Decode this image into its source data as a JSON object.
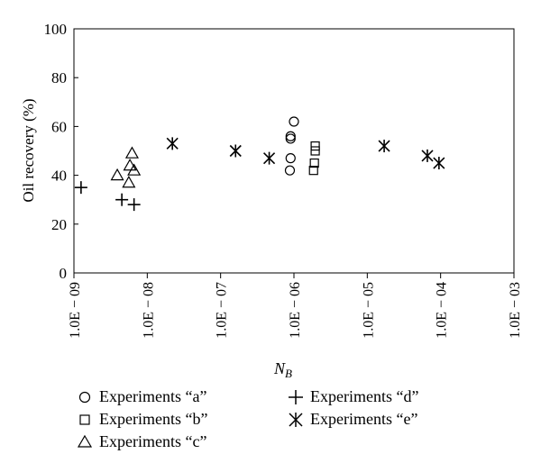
{
  "chart_data": {
    "type": "scatter",
    "xlabel": "N",
    "xlabel_sub": "B",
    "ylabel": "Oil recovery (%)",
    "x_scale": "log",
    "xlim": [
      1e-09,
      0.001
    ],
    "ylim": [
      0,
      100
    ],
    "x_ticks": [
      1e-09,
      1e-08,
      1e-07,
      1e-06,
      1e-05,
      0.0001,
      0.001
    ],
    "x_tick_labels": [
      "1.0E − 09",
      "1.0E − 08",
      "1.0E − 07",
      "1.0E − 06",
      "1.0E − 05",
      "1.0E − 04",
      "1.0E − 03"
    ],
    "y_ticks": [
      0,
      20,
      40,
      60,
      80,
      100
    ],
    "y_tick_labels": [
      "0",
      "20",
      "40",
      "60",
      "80",
      "100"
    ],
    "grid": false,
    "legend_position": "bottom",
    "series": [
      {
        "name": "Experiments “a”",
        "marker": "circle",
        "points": [
          [
            1e-06,
            62
          ],
          [
            9e-07,
            56
          ],
          [
            9e-07,
            55
          ],
          [
            9e-07,
            47
          ],
          [
            8.8e-07,
            42
          ]
        ]
      },
      {
        "name": "Experiments “b”",
        "marker": "square",
        "points": [
          [
            1.95e-06,
            52
          ],
          [
            1.95e-06,
            50
          ],
          [
            1.9e-06,
            45
          ],
          [
            1.85e-06,
            42
          ]
        ]
      },
      {
        "name": "Experiments “c”",
        "marker": "triangle",
        "points": [
          [
            6.2e-09,
            49
          ],
          [
            6.6e-09,
            42
          ],
          [
            5.8e-09,
            44
          ],
          [
            3.9e-09,
            40
          ],
          [
            5.6e-09,
            37
          ]
        ]
      },
      {
        "name": "Experiments “d”",
        "marker": "plus",
        "points": [
          [
            1.25e-09,
            35
          ],
          [
            4.5e-09,
            30
          ],
          [
            6.6e-09,
            28
          ]
        ]
      },
      {
        "name": "Experiments “e”",
        "marker": "asterisk",
        "points": [
          [
            2.2e-08,
            53
          ],
          [
            1.6e-07,
            50
          ],
          [
            4.6e-07,
            47
          ],
          [
            1.7e-05,
            52
          ],
          [
            6.6e-05,
            48
          ],
          [
            9.5e-05,
            45
          ]
        ]
      }
    ]
  }
}
